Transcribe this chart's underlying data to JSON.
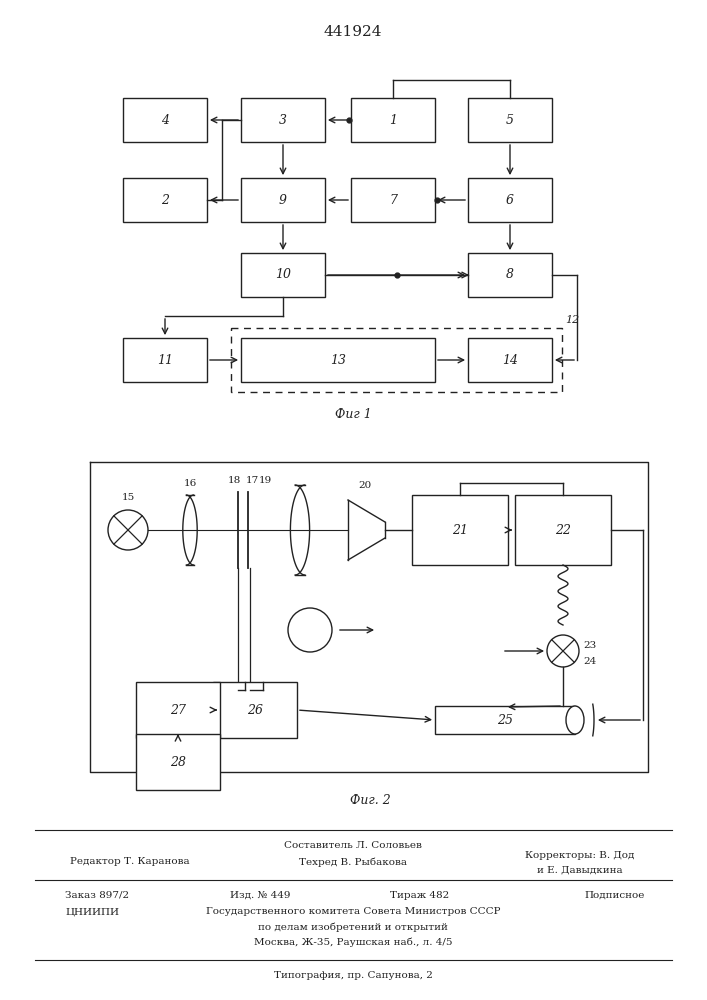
{
  "title": "441924",
  "fig1_caption": "Фиг 1",
  "fig2_caption": "Фиг. 2",
  "bg_color": "#ffffff",
  "line_color": "#222222"
}
